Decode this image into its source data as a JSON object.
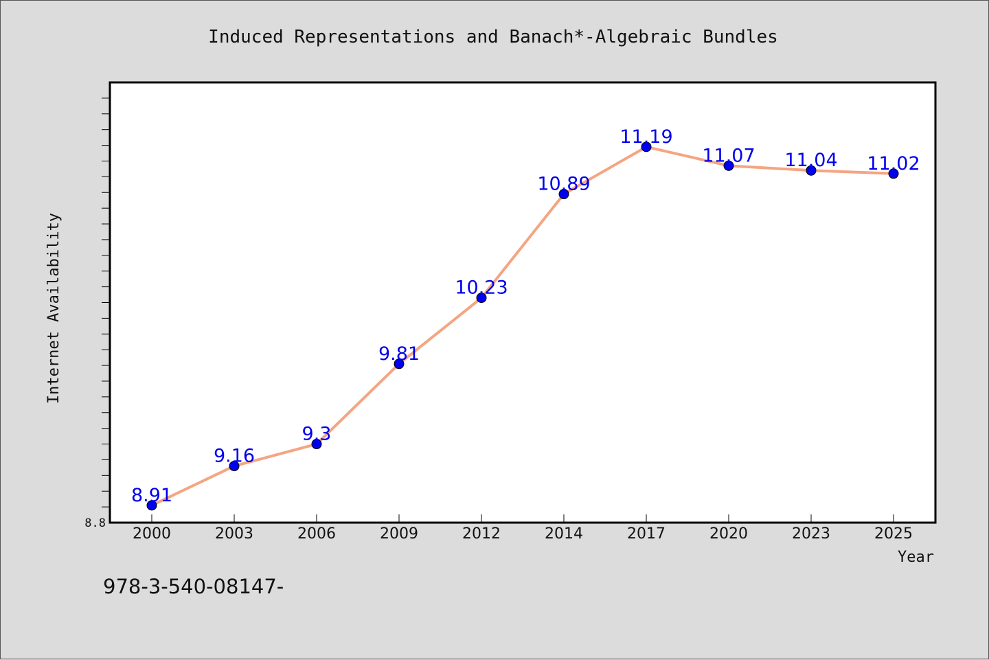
{
  "chart_data": {
    "type": "line",
    "title": "Induced Representations and Banach*-Algebraic Bundles",
    "xlabel": "Year",
    "ylabel": "Internet Availability",
    "categories": [
      "2000",
      "2003",
      "2006",
      "2009",
      "2012",
      "2014",
      "2017",
      "2020",
      "2023",
      "2025"
    ],
    "series": [
      {
        "values": [
          8.91,
          9.16,
          9.3,
          9.81,
          10.23,
          10.89,
          11.19,
          11.07,
          11.04,
          11.02
        ],
        "labels": [
          "8.91",
          "9.16",
          "9.3",
          "9.81",
          "10.23",
          "10.89",
          "11.19",
          "11.07",
          "11.04",
          "11.02"
        ],
        "line_color": "#f4a582",
        "marker_color": "#0000ee",
        "label_color": "#0000ee"
      }
    ],
    "ylim": [
      8.8,
      11.6
    ],
    "yticks_labeled": [
      "8.8"
    ],
    "ytick_step": 0.1,
    "grid": false,
    "legend": "none"
  },
  "footer": {
    "text": "978-3-540-08147-"
  }
}
